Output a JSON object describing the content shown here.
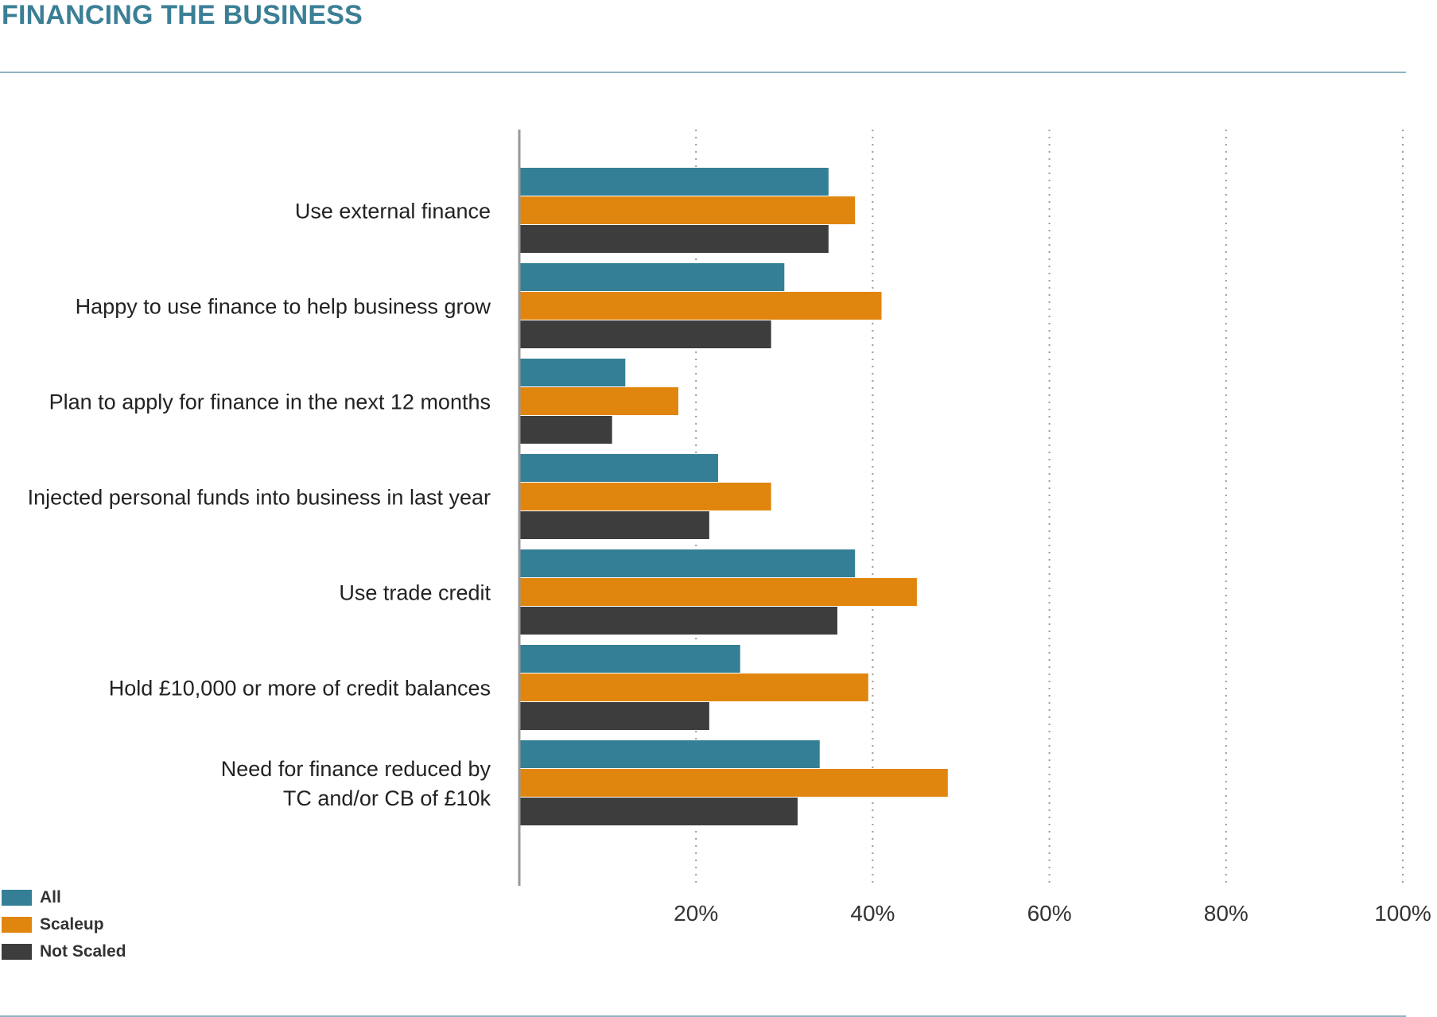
{
  "page": {
    "title": "FINANCING THE BUSINESS"
  },
  "chart_data": {
    "type": "bar",
    "orientation": "horizontal",
    "title": "",
    "xlabel": "",
    "ylabel": "",
    "categories": [
      [
        "Use external finance"
      ],
      [
        "Happy to use finance to help business grow"
      ],
      [
        "Plan to apply for finance in the next 12 months"
      ],
      [
        "Injected personal funds into business in last year"
      ],
      [
        "Use trade credit"
      ],
      [
        "Hold £10,000 or more of credit balances"
      ],
      [
        "Need for finance reduced by",
        "TC and/or CB of £10k"
      ]
    ],
    "series": [
      {
        "name": "All",
        "color": "#357f96",
        "values": [
          35,
          30,
          12,
          22.5,
          38,
          25,
          34
        ]
      },
      {
        "name": "Scaleup",
        "color": "#e0860f",
        "values": [
          38,
          41,
          18,
          28.5,
          45,
          39.5,
          48.5
        ]
      },
      {
        "name": "Not Scaled",
        "color": "#3d3d3d",
        "values": [
          35,
          28.5,
          10.5,
          21.5,
          36,
          21.5,
          31.5
        ]
      }
    ],
    "xlim": [
      0,
      100
    ],
    "xticks": [
      20,
      40,
      60,
      80,
      100
    ],
    "xtick_labels": [
      "20%",
      "40%",
      "60%",
      "80%",
      "100%"
    ],
    "grid": "vertical dotted",
    "legend": {
      "position": "bottom-left",
      "labels": [
        "All",
        "Scaleup",
        "Not Scaled"
      ]
    }
  }
}
